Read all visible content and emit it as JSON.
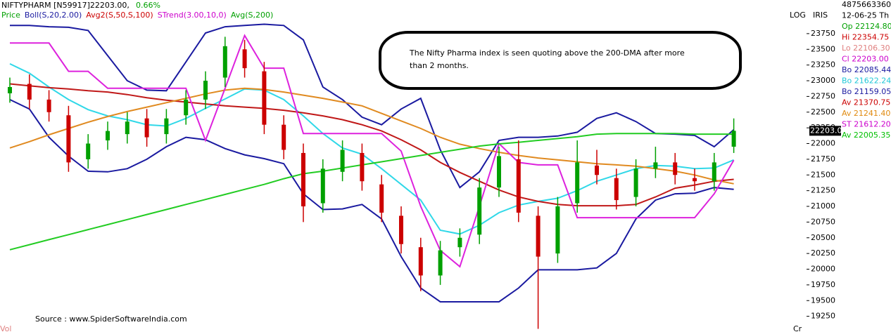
{
  "chart_data": {
    "type": "candlestick",
    "header": {
      "symbol": "NIFTYPHARM [N59917]22203.00,",
      "change": "0.66%"
    },
    "legend": [
      {
        "name": "Price",
        "color": "#00a000"
      },
      {
        "name": "Boll(S,20,2.00)",
        "color": "#1a1aa0"
      },
      {
        "name": "Avg2(S,50,S,100)",
        "color": "#cc0000"
      },
      {
        "name": "STrend(3.00,10,0)",
        "color": "#cc00cc"
      },
      {
        "name": "Avg(S,200)",
        "color": "#00a000"
      }
    ],
    "scale_labels": [
      "LOG",
      "IRIS"
    ],
    "info": [
      {
        "text": "4875663360",
        "color": "#000000"
      },
      {
        "text": "12-06-25 Th",
        "color": "#000000"
      },
      {
        "text": "Op 22124.80",
        "color": "#00a000"
      },
      {
        "text": "Hi 22354.75",
        "color": "#cc0000"
      },
      {
        "text": "Lo 22106.30",
        "color": "#e08080"
      },
      {
        "text": "Cl 22203.00",
        "color": "#cc00cc"
      },
      {
        "text": "Bo 22085.44",
        "color": "#1a1aa0"
      },
      {
        "text": "Bo 21622.24",
        "color": "#20c8d8"
      },
      {
        "text": "Bo 21159.05",
        "color": "#1a1aa0"
      },
      {
        "text": "Av 21370.75",
        "color": "#cc0000"
      },
      {
        "text": "Av 21241.40",
        "color": "#e08a10"
      },
      {
        "text": "ST 21612.20",
        "color": "#cc00cc"
      },
      {
        "text": "Av 22005.35",
        "color": "#00c000"
      }
    ],
    "last_price_label": "22203.0",
    "annotation": [
      "The Nifty Pharma index is seen quoting above the 200-DMA after more",
      "than 2 months."
    ],
    "source": "Source : www.SpiderSoftwareIndia.com",
    "footer_left": "Vol",
    "footer_right": "Cr",
    "log_scale": false,
    "ylim": [
      19000,
      23950
    ],
    "yticks": [
      19250,
      19500,
      19750,
      20000,
      20250,
      20500,
      20750,
      21000,
      21250,
      21500,
      21750,
      22000,
      22250,
      22500,
      22750,
      23000,
      23250,
      23500,
      23750
    ],
    "up_color": "#00a000",
    "down_color": "#cc0000",
    "categories": [
      null,
      null,
      null,
      null,
      null,
      null,
      null,
      null,
      null,
      null,
      null,
      null,
      null,
      null,
      null,
      null,
      null,
      null,
      null,
      null,
      null,
      null,
      null,
      null,
      null,
      null,
      null,
      null,
      null,
      null,
      null,
      null,
      null,
      null,
      null,
      null,
      null,
      null
    ],
    "open": [
      22800,
      22950,
      22700,
      22450,
      21750,
      22050,
      22150,
      22400,
      22150,
      22450,
      22700,
      23050,
      23500,
      23150,
      22300,
      21850,
      21050,
      21550,
      21850,
      21350,
      20850,
      20350,
      19900,
      20350,
      20550,
      21300,
      21750,
      20850,
      20250,
      21050,
      21650,
      21450,
      21150,
      21600,
      21700,
      21450,
      21400,
      21950
    ],
    "high": [
      23050,
      23100,
      22850,
      22600,
      22150,
      22350,
      22500,
      22550,
      22550,
      22850,
      23150,
      23700,
      23650,
      23300,
      22450,
      22000,
      21750,
      22050,
      22000,
      21500,
      21000,
      20500,
      20450,
      20650,
      21450,
      21950,
      22050,
      21000,
      21150,
      22050,
      21900,
      21600,
      21750,
      21950,
      21850,
      21600,
      21850,
      22400
    ],
    "low": [
      22650,
      22550,
      22350,
      21550,
      21600,
      21900,
      22000,
      21950,
      22000,
      22300,
      22550,
      22900,
      23050,
      22150,
      21750,
      20750,
      20900,
      21400,
      21250,
      20750,
      20250,
      19650,
      19750,
      20200,
      20400,
      21150,
      20750,
      19050,
      20100,
      20900,
      21350,
      20950,
      21000,
      21450,
      21350,
      21250,
      21250,
      21850
    ],
    "close": [
      22900,
      22700,
      22500,
      21700,
      22000,
      22200,
      22350,
      22100,
      22400,
      22700,
      23000,
      23550,
      23200,
      22300,
      21900,
      21000,
      21600,
      21900,
      21400,
      20900,
      20400,
      19900,
      20300,
      20500,
      21300,
      21800,
      20900,
      20200,
      21000,
      21700,
      21500,
      21100,
      21600,
      21700,
      21500,
      21400,
      21700,
      22203
    ],
    "lines": [
      {
        "color": "#1a1aa0",
        "values": [
          23880,
          23880,
          23860,
          23850,
          23800,
          23400,
          23000,
          22850,
          22840,
          23300,
          23760,
          23860,
          23880,
          23900,
          23880,
          23650,
          22900,
          22700,
          22420,
          22300,
          22550,
          22720,
          21900,
          21300,
          21550,
          22050,
          22100,
          22100,
          22120,
          22180,
          22400,
          22490,
          22350,
          22160,
          22150,
          22130,
          21950,
          22220
        ]
      },
      {
        "color": "#1a1aa0",
        "values": [
          22700,
          22550,
          22100,
          21800,
          21560,
          21550,
          21600,
          21750,
          21950,
          22100,
          22060,
          21920,
          21820,
          21760,
          21680,
          21200,
          20950,
          20960,
          21030,
          20800,
          20200,
          19700,
          19480,
          19480,
          19480,
          19480,
          19700,
          19990,
          19990,
          19990,
          20020,
          20250,
          20800,
          21100,
          21200,
          21210,
          21300,
          21270
        ]
      },
      {
        "color": "#30d8e8",
        "values": [
          23270,
          23120,
          22900,
          22700,
          22540,
          22440,
          22380,
          22300,
          22280,
          22400,
          22560,
          22710,
          22870,
          22850,
          22700,
          22440,
          22160,
          21930,
          21830,
          21600,
          21350,
          21100,
          20620,
          20560,
          20700,
          20900,
          21020,
          21080,
          21130,
          21250,
          21400,
          21500,
          21600,
          21650,
          21640,
          21600,
          21610,
          21740
        ]
      },
      {
        "color": "#c01818",
        "values": [
          22950,
          22920,
          22890,
          22870,
          22840,
          22820,
          22780,
          22730,
          22690,
          22660,
          22630,
          22600,
          22580,
          22560,
          22530,
          22490,
          22440,
          22380,
          22300,
          22200,
          22060,
          21900,
          21700,
          21540,
          21400,
          21260,
          21150,
          21080,
          21030,
          21010,
          21010,
          21010,
          21030,
          21150,
          21290,
          21340,
          21400,
          21430
        ]
      },
      {
        "color": "#e08a20",
        "values": [
          21930,
          22030,
          22140,
          22240,
          22340,
          22430,
          22510,
          22580,
          22650,
          22720,
          22790,
          22850,
          22880,
          22860,
          22820,
          22770,
          22720,
          22660,
          22600,
          22480,
          22360,
          22240,
          22100,
          21990,
          21920,
          21860,
          21810,
          21770,
          21740,
          21710,
          21680,
          21660,
          21640,
          21600,
          21560,
          21500,
          21420,
          21360
        ]
      },
      {
        "color": "#dd22dd",
        "values": [
          23600,
          23600,
          23600,
          23150,
          23150,
          22880,
          22880,
          22880,
          22880,
          22880,
          22050,
          22880,
          23720,
          23200,
          23200,
          22160,
          22160,
          22160,
          22160,
          22160,
          21880,
          21000,
          20300,
          20040,
          21000,
          22000,
          21700,
          21660,
          21660,
          20820,
          20820,
          20820,
          20820,
          20820,
          20820,
          20820,
          21200,
          21735
        ]
      },
      {
        "color": "#22cc22",
        "values": [
          20310,
          20390,
          20470,
          20550,
          20630,
          20710,
          20790,
          20870,
          20950,
          21030,
          21110,
          21190,
          21270,
          21350,
          21440,
          21520,
          21560,
          21610,
          21660,
          21710,
          21760,
          21810,
          21860,
          21910,
          21960,
          21995,
          22020,
          22050,
          22080,
          22110,
          22150,
          22160,
          22160,
          22160,
          22160,
          22150,
          22150,
          22150
        ]
      }
    ]
  }
}
